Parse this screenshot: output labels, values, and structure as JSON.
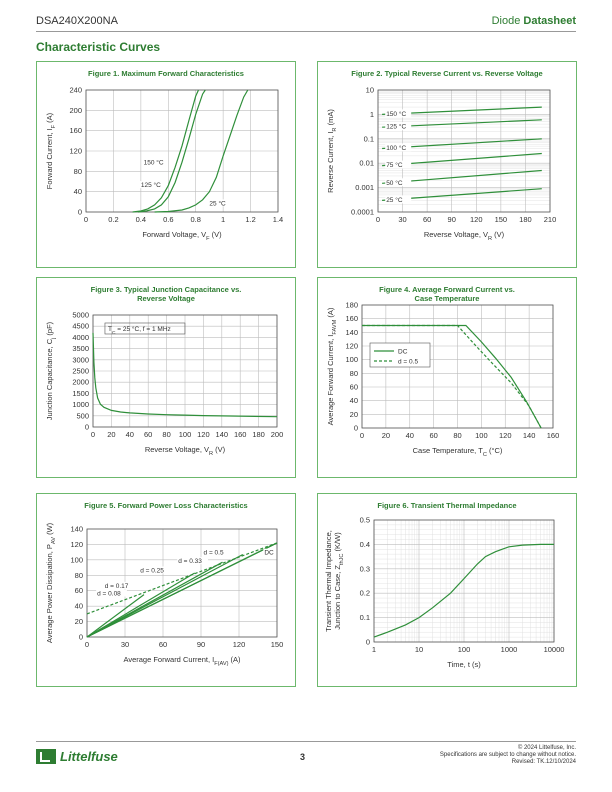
{
  "header": {
    "part_number": "DSA240X200NA",
    "doc_type_prefix": "Diode",
    "doc_type_bold": "Datasheet"
  },
  "section_title": "Characteristic Curves",
  "footer": {
    "logo_text": "Littelfuse",
    "page_number": "3",
    "copyright": "© 2024 Littelfuse, Inc.",
    "notice": "Specifications are subject to change without notice.",
    "revised": "Revised: TK.12/10/2024"
  },
  "colors": {
    "brand_green": "#2e7d32",
    "curve_green": "#2f8f3a",
    "panel_border": "#6cb86c",
    "grid": "#bdbdbd"
  },
  "chart_data": [
    {
      "id": "fig1",
      "type": "line",
      "title": "Figure 1. Maximum Forward Characteristics",
      "xlabel": "Forward Voltage, V_F (V)",
      "ylabel": "Forward Current, I_F (A)",
      "xlim": [
        0,
        1.4
      ],
      "ylim": [
        0,
        240
      ],
      "xticks": [
        "0",
        "0.2",
        "0.4",
        "0.6",
        "0.8",
        "1",
        "1.2",
        "1.4"
      ],
      "yticks": [
        "0",
        "40",
        "80",
        "120",
        "160",
        "200",
        "240"
      ],
      "grid": true,
      "series": [
        {
          "name": "150 °C",
          "x": [
            0.34,
            0.4,
            0.45,
            0.5,
            0.55,
            0.6,
            0.65,
            0.7,
            0.75,
            0.8,
            0.82
          ],
          "y": [
            0,
            2,
            6,
            14,
            28,
            52,
            88,
            130,
            180,
            228,
            240
          ]
        },
        {
          "name": "125 °C",
          "x": [
            0.38,
            0.44,
            0.5,
            0.55,
            0.6,
            0.65,
            0.7,
            0.75,
            0.8,
            0.85,
            0.87
          ],
          "y": [
            0,
            2,
            6,
            14,
            30,
            58,
            98,
            144,
            192,
            232,
            240
          ]
        },
        {
          "name": "25 °C",
          "x": [
            0.5,
            0.6,
            0.7,
            0.75,
            0.8,
            0.85,
            0.9,
            0.95,
            1.0,
            1.05,
            1.1,
            1.15,
            1.18
          ],
          "y": [
            0,
            1,
            4,
            8,
            14,
            24,
            40,
            68,
            110,
            150,
            190,
            226,
            240
          ]
        }
      ],
      "annotations": [
        {
          "text": "150 °C",
          "x": 0.42,
          "y": 95
        },
        {
          "text": "125 °C",
          "x": 0.4,
          "y": 51
        },
        {
          "text": "25 °C",
          "x": 0.9,
          "y": 15
        }
      ]
    },
    {
      "id": "fig2",
      "type": "line",
      "title": "Figure 2. Typical Reverse Current vs. Reverse Voltage",
      "xlabel": "Reverse Voltage, V_R (V)",
      "ylabel": "Reverse Current, I_R (mA)",
      "xlim": [
        0,
        210
      ],
      "ylim": [
        0.0001,
        10
      ],
      "yscale": "log",
      "xticks": [
        "0",
        "30",
        "60",
        "90",
        "120",
        "150",
        "180",
        "210"
      ],
      "yticks": [
        "0.0001",
        "0.001",
        "0.01",
        "0.1",
        "1",
        "10"
      ],
      "grid": true,
      "series": [
        {
          "name": "150 °C",
          "x": [
            5,
            200
          ],
          "y": [
            1.0,
            2.0
          ]
        },
        {
          "name": "125 °C",
          "x": [
            5,
            200
          ],
          "y": [
            0.3,
            0.6
          ]
        },
        {
          "name": "100 °C",
          "x": [
            5,
            200
          ],
          "y": [
            0.04,
            0.1
          ]
        },
        {
          "name": "75 °C",
          "x": [
            5,
            200
          ],
          "y": [
            0.008,
            0.025
          ]
        },
        {
          "name": "50 °C",
          "x": [
            5,
            200
          ],
          "y": [
            0.0015,
            0.005
          ]
        },
        {
          "name": "25 °C",
          "x": [
            5,
            200
          ],
          "y": [
            0.0003,
            0.0009
          ]
        }
      ]
    },
    {
      "id": "fig3",
      "type": "line",
      "title": "Figure 3. Typical Junction Capacitance vs. Reverse Voltage",
      "title_lines": [
        "Figure 3. Typical Junction Capacitance vs.",
        "Reverse Voltage"
      ],
      "xlabel": "Reverse Voltage, V_R (V)",
      "ylabel": "Junction Capacitance, C_j (pF)",
      "xlim": [
        0,
        200
      ],
      "ylim": [
        0,
        5000
      ],
      "xticks": [
        "0",
        "20",
        "40",
        "60",
        "80",
        "100",
        "120",
        "140",
        "160",
        "180",
        "200"
      ],
      "yticks": [
        "0",
        "500",
        "1000",
        "1500",
        "2000",
        "2500",
        "3000",
        "3500",
        "4000",
        "4500",
        "5000"
      ],
      "grid": true,
      "annotations": [
        {
          "text": "T_C = 25 °C, f = 1 MHz",
          "x": 13,
          "y": 4420
        }
      ],
      "series": [
        {
          "name": "",
          "x": [
            0,
            1,
            2,
            3,
            5,
            8,
            12,
            20,
            30,
            40,
            60,
            80,
            100,
            120,
            150,
            200
          ],
          "y": [
            4200,
            2900,
            2200,
            1750,
            1300,
            1020,
            880,
            740,
            670,
            630,
            580,
            550,
            530,
            510,
            490,
            460
          ]
        }
      ]
    },
    {
      "id": "fig4",
      "type": "line",
      "title": "Figure 4. Average Forward Current vs. Case Temperature",
      "title_lines": [
        "Figure 4. Average Forward Current vs.",
        "Case Temperature"
      ],
      "xlabel": "Case Temperature, T_C (°C)",
      "ylabel": "Average Forward Current, I_FAVM (A)",
      "xlim": [
        0,
        160
      ],
      "ylim": [
        0,
        180
      ],
      "xticks": [
        "0",
        "20",
        "40",
        "60",
        "80",
        "100",
        "120",
        "140",
        "160"
      ],
      "yticks": [
        "0",
        "20",
        "40",
        "60",
        "80",
        "100",
        "120",
        "140",
        "160",
        "180"
      ],
      "grid": true,
      "legend": "inside-left",
      "series": [
        {
          "name": "DC",
          "x": [
            0,
            87,
            100,
            112,
            125,
            138,
            150
          ],
          "y": [
            150,
            150,
            126,
            102,
            74,
            38,
            0
          ]
        },
        {
          "name": "d = 0.5",
          "x": [
            0,
            80,
            95,
            110,
            125,
            140,
            150
          ],
          "y": [
            150,
            150,
            121,
            93,
            66,
            32,
            0
          ]
        }
      ]
    },
    {
      "id": "fig5",
      "type": "line",
      "title": "Figure 5. Forward Power Loss Characteristics",
      "xlabel": "Average Forward Current, I_F(AV) (A)",
      "ylabel": "Average Power Dissipation, P_AV (W)",
      "xlim": [
        0,
        150
      ],
      "ylim": [
        0,
        140
      ],
      "xticks": [
        "0",
        "30",
        "60",
        "90",
        "120",
        "150"
      ],
      "yticks": [
        "0",
        "20",
        "40",
        "60",
        "80",
        "100",
        "120",
        "140"
      ],
      "grid": true,
      "series": [
        {
          "name": "DC",
          "x": [
            0,
            150
          ],
          "y": [
            0,
            122
          ]
        },
        {
          "name": "d = 0.5",
          "x": [
            0,
            150
          ],
          "y": [
            0,
            122
          ]
        },
        {
          "name": "d = 0.33",
          "x": [
            0,
            123
          ],
          "y": [
            0,
            107
          ]
        },
        {
          "name": "d = 0.25",
          "x": [
            0,
            107
          ],
          "y": [
            0,
            97
          ]
        },
        {
          "name": "d = 0.17",
          "x": [
            0,
            85
          ],
          "y": [
            0,
            83
          ]
        },
        {
          "name": "d = 0.08",
          "x": [
            0,
            45
          ],
          "y": [
            0,
            55
          ]
        },
        {
          "name": "",
          "x": [
            0,
            150
          ],
          "y": [
            30,
            122
          ],
          "dashed": true
        }
      ],
      "annotations": [
        {
          "text": "d = 0.08",
          "x": 8,
          "y": 55
        },
        {
          "text": "d = 0.17",
          "x": 14,
          "y": 65
        },
        {
          "text": "d = 0.25",
          "x": 42,
          "y": 85
        },
        {
          "text": "d = 0.33",
          "x": 72,
          "y": 97
        },
        {
          "text": "d = 0.5",
          "x": 92,
          "y": 108
        },
        {
          "text": "DC",
          "x": 140,
          "y": 108
        }
      ]
    },
    {
      "id": "fig6",
      "type": "line",
      "title": "Figure 6. Transient Thermal Impedance",
      "xlabel": "Time, t (s)",
      "ylabel": "Transient Thermal Impedance, Junction to Case, Z_thJC (K/W)",
      "ylabel_lines": [
        "Transient Thermal Impedance,",
        "Junction to Case, Z_thJC (K/W)"
      ],
      "xlim": [
        1,
        10000
      ],
      "xscale": "log",
      "ylim": [
        0,
        0.5
      ],
      "xticks": [
        "1",
        "10",
        "100",
        "1000",
        "10000"
      ],
      "yticks": [
        "0",
        "0.1",
        "0.2",
        "0.3",
        "0.4",
        "0.5"
      ],
      "grid": true,
      "series": [
        {
          "name": "",
          "x": [
            1,
            2,
            5,
            10,
            20,
            50,
            100,
            200,
            300,
            500,
            700,
            1000,
            2000,
            5000,
            10000
          ],
          "y": [
            0.02,
            0.04,
            0.07,
            0.1,
            0.14,
            0.2,
            0.26,
            0.32,
            0.35,
            0.37,
            0.38,
            0.39,
            0.397,
            0.4,
            0.4
          ]
        }
      ]
    }
  ]
}
